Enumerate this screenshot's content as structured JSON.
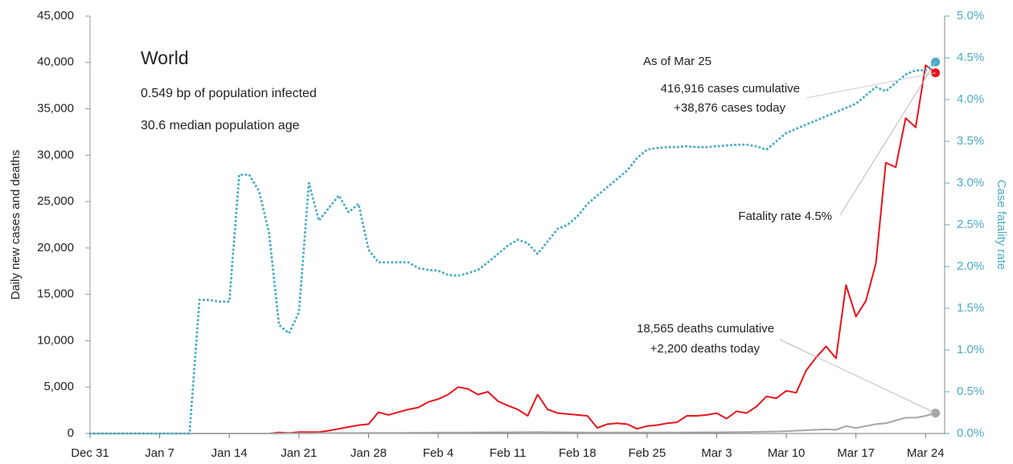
{
  "chart_data": {
    "type": "line",
    "annotations": [
      "World",
      "0.549 bp of population infected",
      "30.6 median population age",
      "As of Mar 25",
      "416,916 cases cumulative",
      "+38,876 cases today",
      "Fatality rate 4.5%",
      "18,565 deaths cumulative",
      "+2,200 deaths today"
    ],
    "ylabel": "Daily new cases and deaths",
    "y2label": "Case fatality rate",
    "x": [
      0,
      1,
      2,
      3,
      4,
      5,
      6,
      7,
      8,
      9,
      10,
      11,
      12,
      13,
      14,
      15,
      16,
      17,
      18,
      19,
      20,
      21,
      22,
      23,
      24,
      25,
      26,
      27,
      28,
      29,
      30,
      31,
      32,
      33,
      34,
      35,
      36,
      37,
      38,
      39,
      40,
      41,
      42,
      43,
      44,
      45,
      46,
      47,
      48,
      49,
      50,
      51,
      52,
      53,
      54,
      55,
      56,
      57,
      58,
      59,
      60,
      61,
      62,
      63,
      64,
      65,
      66,
      67,
      68,
      69,
      70,
      71,
      72,
      73,
      74,
      75,
      76,
      77,
      78,
      79,
      80,
      81,
      82,
      83,
      84,
      85
    ],
    "xlim": [
      0,
      86
    ],
    "xticks": [
      {
        "value": 0,
        "label": "Dec 31"
      },
      {
        "value": 7,
        "label": "Jan 7"
      },
      {
        "value": 14,
        "label": "Jan 14"
      },
      {
        "value": 21,
        "label": "Jan 21"
      },
      {
        "value": 28,
        "label": "Jan 28"
      },
      {
        "value": 35,
        "label": "Feb 4"
      },
      {
        "value": 42,
        "label": "Feb 11"
      },
      {
        "value": 49,
        "label": "Feb 18"
      },
      {
        "value": 56,
        "label": "Feb 25"
      },
      {
        "value": 63,
        "label": "Mar 3"
      },
      {
        "value": 70,
        "label": "Mar 10"
      },
      {
        "value": 77,
        "label": "Mar 17"
      },
      {
        "value": 84,
        "label": "Mar 24"
      }
    ],
    "ylim": [
      0,
      45000
    ],
    "yticks": [
      0,
      {
        "value": 5000,
        "label": "5,000"
      },
      {
        "value": 10000,
        "label": "10,000"
      },
      {
        "value": 15000,
        "label": "15,000"
      },
      {
        "value": 20000,
        "label": "20,000"
      },
      {
        "value": 25000,
        "label": "25,000"
      },
      {
        "value": 30000,
        "label": "30,000"
      },
      {
        "value": 35000,
        "label": "35,000"
      },
      {
        "value": 40000,
        "label": "40,000"
      },
      {
        "value": 45000,
        "label": "45,000"
      }
    ],
    "y2lim": [
      0,
      5
    ],
    "y2ticks": [
      {
        "value": 0,
        "label": "0.0%"
      },
      {
        "value": 0.5,
        "label": "0.5%"
      },
      {
        "value": 1,
        "label": "1.0%"
      },
      {
        "value": 1.5,
        "label": "1.5%"
      },
      {
        "value": 2,
        "label": "2.0%"
      },
      {
        "value": 2.5,
        "label": "2.5%"
      },
      {
        "value": 3,
        "label": "3.0%"
      },
      {
        "value": 3.5,
        "label": "3.5%"
      },
      {
        "value": 4,
        "label": "4.0%"
      },
      {
        "value": 4.5,
        "label": "4.5%"
      },
      {
        "value": 5,
        "label": "5.0%"
      }
    ],
    "grid": false,
    "series": [
      {
        "color": "#e8141b",
        "style": "solid",
        "values": [
          0,
          0,
          0,
          0,
          0,
          0,
          0,
          0,
          0,
          0,
          0,
          0,
          0,
          0,
          0,
          0,
          0,
          0,
          0,
          100,
          50,
          150,
          150,
          150,
          300,
          500,
          700,
          900,
          1000,
          2300,
          2000,
          2300,
          2600,
          2800,
          3400,
          3700,
          4200,
          5000,
          4800,
          4200,
          4500,
          3500,
          3000,
          2600,
          1900,
          4200,
          2600,
          2200,
          2100,
          2000,
          1900,
          600,
          1000,
          1100,
          1000,
          500,
          800,
          900,
          1100,
          1200,
          1900,
          1900,
          2000,
          2200,
          1600,
          2400,
          2200,
          2900,
          4000,
          3800,
          4600,
          4400,
          6800,
          8200,
          9400,
          8100,
          16000,
          12600,
          14300,
          18300,
          29200,
          28700,
          34000,
          33000,
          39700,
          38876
        ]
      },
      {
        "color": "#a6a6a6",
        "style": "solid",
        "values": [
          0,
          0,
          0,
          0,
          0,
          0,
          0,
          0,
          0,
          0,
          0,
          0,
          0,
          0,
          0,
          0,
          0,
          0,
          0,
          0,
          20,
          30,
          30,
          40,
          40,
          50,
          50,
          50,
          60,
          60,
          60,
          70,
          80,
          90,
          90,
          100,
          100,
          110,
          110,
          120,
          120,
          130,
          130,
          140,
          140,
          150,
          140,
          130,
          120,
          120,
          110,
          110,
          100,
          100,
          100,
          100,
          100,
          110,
          110,
          110,
          120,
          120,
          130,
          130,
          140,
          150,
          160,
          180,
          200,
          220,
          250,
          300,
          350,
          400,
          450,
          400,
          800,
          600,
          800,
          1000,
          1100,
          1400,
          1700,
          1700,
          1900,
          2200
        ]
      },
      {
        "color": "#4bacc6",
        "style": "dotted",
        "axis": "y2",
        "values": [
          0,
          0,
          0,
          0,
          0,
          0,
          0,
          0,
          0,
          0,
          0,
          1.6,
          1.6,
          1.58,
          1.58,
          3.1,
          3.1,
          2.9,
          2.4,
          1.3,
          1.2,
          1.45,
          3.0,
          2.55,
          2.7,
          2.85,
          2.65,
          2.75,
          2.2,
          2.05,
          2.05,
          2.05,
          2.05,
          1.98,
          1.96,
          1.95,
          1.9,
          1.89,
          1.92,
          1.96,
          2.05,
          2.15,
          2.25,
          2.32,
          2.28,
          2.15,
          2.3,
          2.45,
          2.5,
          2.6,
          2.75,
          2.85,
          2.95,
          3.05,
          3.15,
          3.3,
          3.4,
          3.42,
          3.43,
          3.43,
          3.44,
          3.43,
          3.43,
          3.44,
          3.45,
          3.46,
          3.46,
          3.44,
          3.4,
          3.5,
          3.6,
          3.65,
          3.7,
          3.75,
          3.8,
          3.85,
          3.9,
          3.95,
          4.05,
          4.15,
          4.1,
          4.2,
          4.3,
          4.35,
          4.35,
          4.45
        ]
      }
    ]
  }
}
